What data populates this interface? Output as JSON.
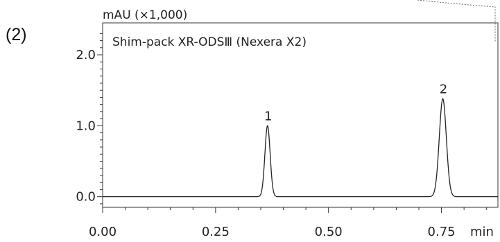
{
  "figure_label": "(2)",
  "chart_data": {
    "type": "line",
    "title": "Shim-pack XR-ODSⅢ (Nexera X2)",
    "xlabel": "min",
    "ylabel": "mAU (×1,000)",
    "xlim": [
      0.0,
      0.875
    ],
    "ylim": [
      -0.15,
      2.45
    ],
    "x_ticks": [
      0.0,
      0.25,
      0.5,
      0.75
    ],
    "x_tick_labels": [
      "0.00",
      "0.25",
      "0.50",
      "0.75"
    ],
    "y_ticks": [
      0.0,
      1.0,
      2.0
    ],
    "y_tick_labels": [
      "0.0",
      "1.0",
      "2.0"
    ],
    "grid": false,
    "series": [
      {
        "peaks": [
          {
            "label": "1",
            "retention_time": 0.365,
            "height": 1.0,
            "width": 0.0058
          },
          {
            "label": "2",
            "retention_time": 0.753,
            "height": 1.38,
            "width": 0.0078
          }
        ],
        "baseline": 0.0
      }
    ]
  }
}
